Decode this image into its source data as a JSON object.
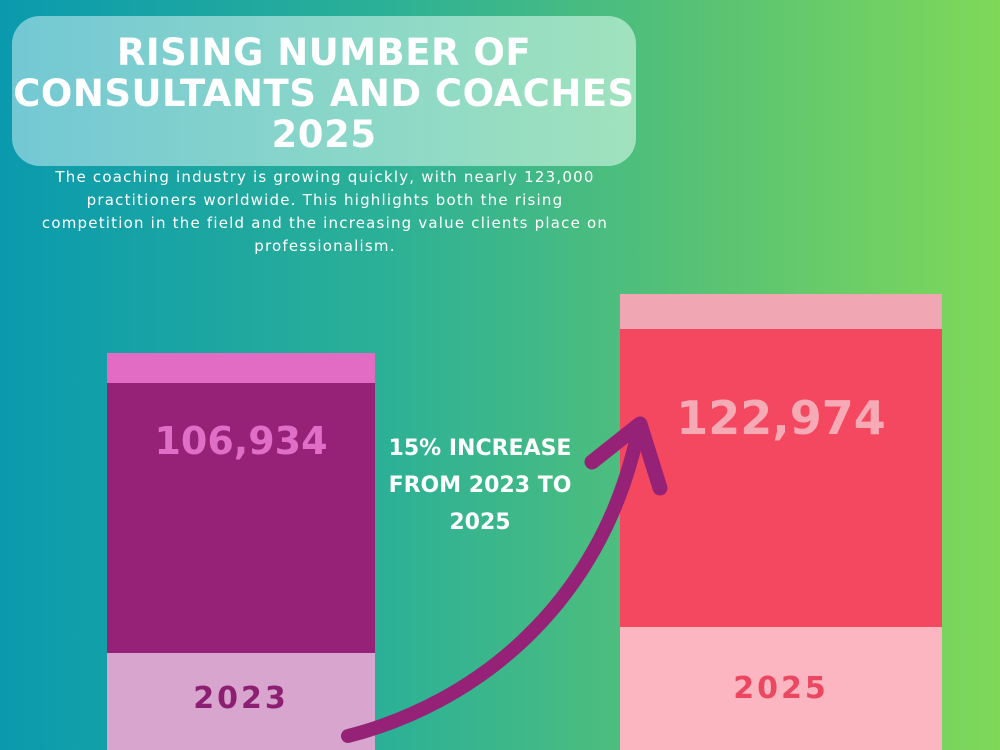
{
  "chart_data": {
    "type": "bar",
    "title": "RISING NUMBER OF CONSULTANTS AND COACHES 2025",
    "subtitle": "The coaching industry is growing quickly, with nearly 123,000 practitioners worldwide. This highlights both the rising competition in the field and the increasing value clients place on professionalism.",
    "categories": [
      "2023",
      "2025"
    ],
    "values": [
      106934,
      122974
    ],
    "value_labels": [
      "106,934",
      "122,974"
    ],
    "annotation": "15% INCREASE FROM 2023 TO 2025",
    "colors": {
      "bar_2023_top": "#e26cc3",
      "bar_2023_main": "#962277",
      "bar_2023_base": "#d7a5cd",
      "bar_2023_value": "#df6ec6",
      "bar_2023_label": "#8d1f72",
      "bar_2025_top": "#f1a6b3",
      "bar_2025_main": "#f3485f",
      "bar_2025_base": "#fbb6c1",
      "bar_2025_value": "#f6aab5",
      "bar_2025_label": "#ec4760",
      "arrow": "#962277"
    }
  }
}
